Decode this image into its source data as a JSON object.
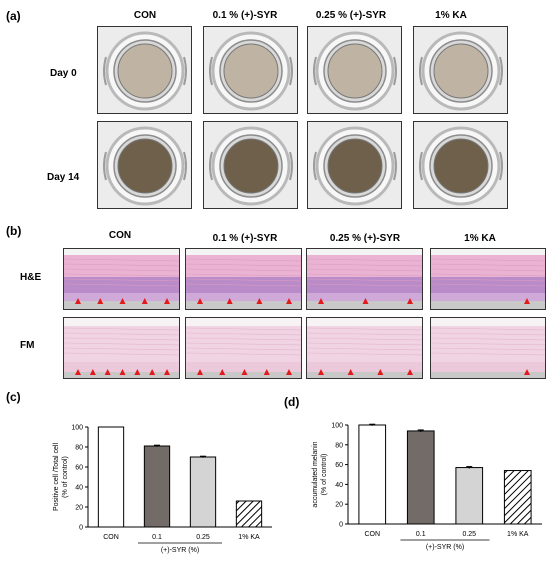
{
  "panel_a": {
    "label": "(a)",
    "columns": [
      "CON",
      "0.1 % (+)-SYR",
      "0.25 % (+)-SYR",
      "1% KA"
    ],
    "rows": [
      "Day 0",
      "Day 14"
    ],
    "well_colors": {
      "day0": "#bfb4a3",
      "day14": "#6e604b"
    }
  },
  "panel_b": {
    "label": "(b)",
    "columns": [
      "CON",
      "0.1 % (+)-SYR",
      "0.25 % (+)-SYR",
      "1% KA"
    ],
    "rows": [
      "H&E",
      "FM"
    ],
    "arrow_counts": {
      "he": [
        5,
        4,
        3,
        1
      ],
      "fm": [
        7,
        5,
        4,
        1
      ]
    }
  },
  "panel_c": {
    "label": "(c)"
  },
  "panel_d": {
    "label": "(d)"
  },
  "chart_data": [
    {
      "type": "bar",
      "panel": "c",
      "categories": [
        "CON",
        "0.1",
        "0.25",
        "1% KA"
      ],
      "values": [
        100,
        81,
        70,
        26
      ],
      "errors": [
        0,
        0.8,
        0.8,
        0
      ],
      "ylabel": "Positive cell /Total cell\n(% of control)",
      "group_label": "(+)-SYR (%)",
      "ylim": [
        0,
        100
      ],
      "yticks": [
        0,
        20,
        40,
        60,
        80,
        100
      ],
      "fills": [
        "#ffffff",
        "#736b68",
        "#d4d4d4",
        "hatch"
      ]
    },
    {
      "type": "bar",
      "panel": "d",
      "categories": [
        "CON",
        "0.1",
        "0.25",
        "1% KA"
      ],
      "values": [
        100,
        94,
        57,
        54
      ],
      "errors": [
        0.8,
        1,
        1,
        0
      ],
      "ylabel": "accumulated melanin\n(% of control)",
      "group_label": "(+)-SYR (%)",
      "ylim": [
        0,
        100
      ],
      "yticks": [
        0,
        20,
        40,
        60,
        80,
        100
      ],
      "fills": [
        "#ffffff",
        "#736b68",
        "#d4d4d4",
        "hatch"
      ]
    }
  ]
}
